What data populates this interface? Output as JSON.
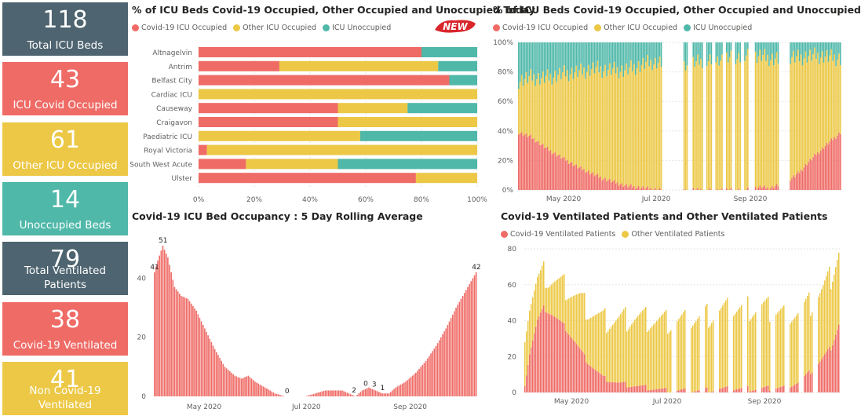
{
  "colors": {
    "covid": "#ef6b66",
    "other": "#ecc846",
    "unocc": "#4fb8a9",
    "dark": "#4e6470"
  },
  "kpis": [
    {
      "value": "118",
      "label": "Total ICU Beds",
      "color": "#4e6470"
    },
    {
      "value": "43",
      "label": "ICU Covid Occupied",
      "color": "#ef6b66"
    },
    {
      "value": "61",
      "label": "Other ICU Occupied",
      "color": "#ecc846"
    },
    {
      "value": "14",
      "label": "Unoccupied Beds",
      "color": "#4fb8a9"
    },
    {
      "value": "79",
      "label": "Total Ventilated Patients",
      "color": "#4e6470"
    },
    {
      "value": "38",
      "label": "Covid-19 Ventilated",
      "color": "#ef6b66"
    },
    {
      "value": "41",
      "label": "Non Covid-19 Ventilated",
      "color": "#ecc846"
    }
  ],
  "badge": "NEW",
  "chart_data": [
    {
      "type": "bar",
      "orientation": "horizontal",
      "stacked": true,
      "title": "% of ICU Beds Covid-19 Occupied, Other Occupied and Unoccupied Today",
      "categories": [
        "Altnagelvin",
        "Antrim",
        "Belfast City",
        "Cardiac ICU",
        "Causeway",
        "Craigavon",
        "Paediatric ICU",
        "Royal Victoria",
        "South West Acute",
        "Ulster"
      ],
      "series": [
        {
          "name": "Covid-19 ICU Occupied",
          "color": "#ef6b66",
          "values": [
            80,
            29,
            90,
            0,
            50,
            50,
            0,
            3,
            17,
            78
          ]
        },
        {
          "name": "Other ICU Occupied",
          "color": "#ecc846",
          "values": [
            0,
            57,
            0,
            100,
            25,
            50,
            58,
            97,
            33,
            22
          ]
        },
        {
          "name": "ICU Unoccupied",
          "color": "#4fb8a9",
          "values": [
            20,
            14,
            10,
            0,
            25,
            0,
            42,
            0,
            50,
            0
          ]
        }
      ],
      "xticks": [
        "0%",
        "20%",
        "40%",
        "60%",
        "80%",
        "100%"
      ],
      "xlim": [
        0,
        100
      ],
      "legend": "top-left"
    },
    {
      "type": "bar",
      "stacked": true,
      "title": "% of ICU Beds Covid-19 Occupied, Other Occupied and Unoccupied",
      "x_start": "2020-04-01",
      "series": [
        {
          "name": "Covid-19 ICU Occupied",
          "color": "#ef6b66",
          "values": []
        },
        {
          "name": "Other ICU Occupied",
          "color": "#ecc846",
          "values": []
        },
        {
          "name": "ICU Unoccupied",
          "color": "#4fb8a9",
          "values": []
        }
      ],
      "covid_knots": [
        [
          0,
          39
        ],
        [
          8,
          36
        ],
        [
          20,
          27
        ],
        [
          40,
          15
        ],
        [
          55,
          8
        ],
        [
          70,
          3
        ],
        [
          85,
          1
        ],
        [
          95,
          0
        ],
        [
          150,
          0
        ],
        [
          160,
          2
        ],
        [
          165,
          1
        ],
        [
          175,
          5
        ],
        [
          180,
          8
        ],
        [
          185,
          12
        ],
        [
          190,
          18
        ],
        [
          200,
          28
        ],
        [
          212,
          39
        ]
      ],
      "other_knots": [
        [
          0,
          35
        ],
        [
          15,
          45
        ],
        [
          30,
          58
        ],
        [
          50,
          72
        ],
        [
          70,
          78
        ],
        [
          85,
          85
        ],
        [
          95,
          86
        ],
        [
          110,
          85
        ],
        [
          130,
          88
        ],
        [
          150,
          90
        ],
        [
          165,
          88
        ],
        [
          180,
          82
        ],
        [
          195,
          68
        ],
        [
          212,
          50
        ]
      ],
      "gap_ranges": [
        [
          95,
          108
        ],
        [
          112,
          114
        ],
        [
          122,
          123
        ],
        [
          128,
          129
        ],
        [
          135,
          136
        ],
        [
          141,
          142
        ],
        [
          147,
          148
        ],
        [
          152,
          155
        ],
        [
          172,
          178
        ]
      ],
      "yticks": [
        "0%",
        "20%",
        "40%",
        "60%",
        "80%",
        "100%"
      ],
      "ylim": [
        0,
        100
      ],
      "xticks": [
        "May 2020",
        "Jul 2020",
        "Sep 2020"
      ],
      "legend": "top-left"
    },
    {
      "type": "bar",
      "title": "Covid-19 ICU Bed Occupancy : 5 Day Rolling Average",
      "x_start": "2020-04-01",
      "knots": [
        [
          0,
          42
        ],
        [
          2,
          46
        ],
        [
          5,
          51
        ],
        [
          8,
          47
        ],
        [
          12,
          37
        ],
        [
          16,
          34
        ],
        [
          20,
          33
        ],
        [
          25,
          29
        ],
        [
          30,
          23
        ],
        [
          36,
          16
        ],
        [
          42,
          10
        ],
        [
          48,
          7
        ],
        [
          52,
          6
        ],
        [
          56,
          7
        ],
        [
          60,
          5
        ],
        [
          66,
          3
        ],
        [
          72,
          1
        ],
        [
          78,
          0
        ],
        [
          90,
          0
        ],
        [
          96,
          1
        ],
        [
          102,
          2
        ],
        [
          108,
          2
        ],
        [
          112,
          2
        ],
        [
          116,
          1
        ],
        [
          120,
          0
        ],
        [
          124,
          2
        ],
        [
          128,
          3
        ],
        [
          132,
          2
        ],
        [
          136,
          1
        ],
        [
          140,
          1
        ],
        [
          144,
          3
        ],
        [
          150,
          5
        ],
        [
          156,
          8
        ],
        [
          162,
          12
        ],
        [
          168,
          17
        ],
        [
          174,
          23
        ],
        [
          180,
          30
        ],
        [
          186,
          36
        ],
        [
          192,
          42
        ]
      ],
      "yticks": [
        "0",
        "20",
        "40"
      ],
      "ylim": [
        0,
        55
      ],
      "data_labels": [
        {
          "i": 0,
          "value": "41"
        },
        {
          "i": 5,
          "value": "51"
        },
        {
          "i": 79,
          "value": "0"
        },
        {
          "i": 119,
          "value": "2"
        },
        {
          "i": 126,
          "value": "0"
        },
        {
          "i": 131,
          "value": "3"
        },
        {
          "i": 136,
          "value": "1"
        },
        {
          "i": 192,
          "value": "42"
        }
      ],
      "xticks": [
        "May 2020",
        "Jul 2020",
        "Sep 2020"
      ]
    },
    {
      "type": "bar",
      "stacked": true,
      "title": "Covid-19 Ventilated Patients and Other Ventilated Patients",
      "x_start": "2020-04-01",
      "series": [
        {
          "name": "Covid-19 Ventilated Patients",
          "color": "#ef6b66",
          "values": []
        },
        {
          "name": "Other Ventilated Patients",
          "color": "#ecc846",
          "values": []
        }
      ],
      "covid_knots": [
        [
          0,
          5
        ],
        [
          3,
          22
        ],
        [
          8,
          40
        ],
        [
          12,
          47
        ],
        [
          18,
          43
        ],
        [
          25,
          37
        ],
        [
          32,
          28
        ],
        [
          40,
          17
        ],
        [
          50,
          8
        ],
        [
          60,
          5
        ],
        [
          75,
          3
        ],
        [
          90,
          1
        ],
        [
          110,
          1
        ],
        [
          130,
          2
        ],
        [
          150,
          2
        ],
        [
          165,
          3
        ],
        [
          175,
          6
        ],
        [
          185,
          14
        ],
        [
          195,
          25
        ],
        [
          200,
          38
        ]
      ],
      "other_knots": [
        [
          0,
          30
        ],
        [
          5,
          25
        ],
        [
          10,
          20
        ],
        [
          15,
          18
        ],
        [
          25,
          22
        ],
        [
          35,
          28
        ],
        [
          50,
          32
        ],
        [
          70,
          38
        ],
        [
          90,
          38
        ],
        [
          110,
          40
        ],
        [
          130,
          44
        ],
        [
          150,
          45
        ],
        [
          165,
          42
        ],
        [
          180,
          38
        ],
        [
          190,
          38
        ],
        [
          200,
          41
        ]
      ],
      "gap_ranges": [
        [
          94,
          96
        ],
        [
          103,
          105
        ],
        [
          112,
          114
        ],
        [
          121,
          123
        ],
        [
          130,
          132
        ],
        [
          139,
          141
        ],
        [
          148,
          150
        ],
        [
          157,
          159
        ],
        [
          166,
          168
        ],
        [
          175,
          177
        ],
        [
          184,
          186
        ]
      ],
      "yticks": [
        "0",
        "20",
        "40",
        "60",
        "80"
      ],
      "ylim": [
        0,
        80
      ],
      "xticks": [
        "May 2020",
        "Jul 2020",
        "Sep 2020"
      ],
      "legend": "top-left"
    }
  ]
}
